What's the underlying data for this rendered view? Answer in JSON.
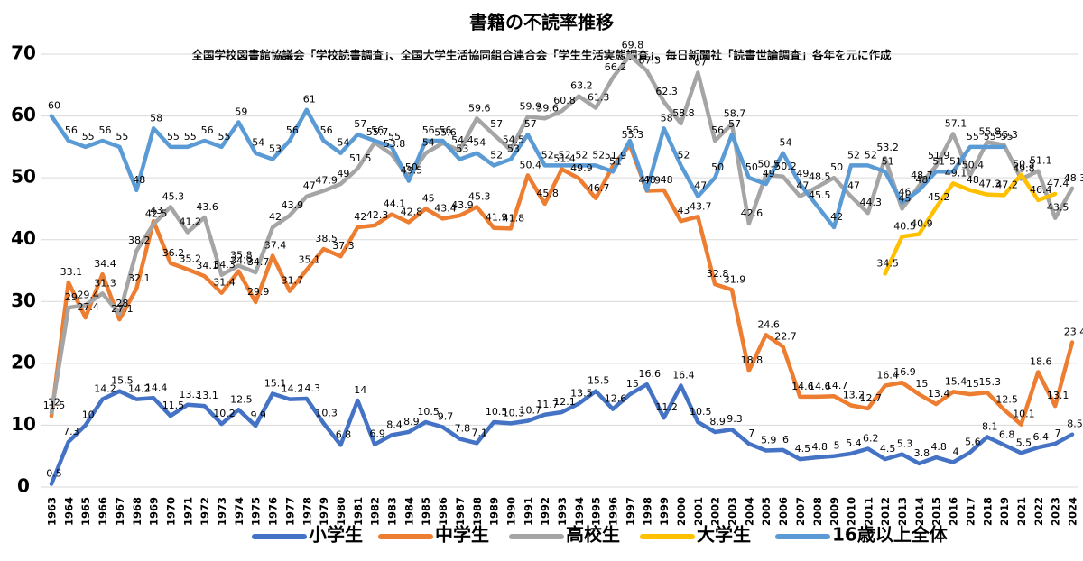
{
  "chart_data": {
    "type": "line",
    "title": "書籍の不読率推移",
    "subtitle": "全国学校図書館協議会「学校読書調査」、全国大学生活協同組合連合会「学生生活実態調査」、毎日新聞社「読書世論調査」各年を元に作成",
    "categories": [
      "1963",
      "1964",
      "1965",
      "1966",
      "1967",
      "1968",
      "1969",
      "1970",
      "1971",
      "1972",
      "1973",
      "1974",
      "1975",
      "1976",
      "1977",
      "1978",
      "1979",
      "1980",
      "1981",
      "1982",
      "1983",
      "1984",
      "1985",
      "1986",
      "1987",
      "1988",
      "1989",
      "1990",
      "1991",
      "1992",
      "1993",
      "1994",
      "1995",
      "1996",
      "1997",
      "1998",
      "1999",
      "2000",
      "2001",
      "2002",
      "2003",
      "2004",
      "2005",
      "2006",
      "2007",
      "2008",
      "2009",
      "2010",
      "2011",
      "2012",
      "2013",
      "2014",
      "2015",
      "2016",
      "2017",
      "2018",
      "2019",
      "2021",
      "2022",
      "2023",
      "2024"
    ],
    "ylim": [
      0,
      70
    ],
    "yticks": [
      0,
      10,
      20,
      30,
      40,
      50,
      60,
      70
    ],
    "grid": true,
    "legend": "bottom",
    "series": [
      {
        "name": "小学生",
        "color": "#4472c4",
        "values": [
          0.5,
          7.3,
          10,
          14.2,
          15.5,
          14.2,
          14.4,
          11.5,
          13.3,
          13.1,
          10.2,
          12.5,
          9.9,
          15.1,
          14.2,
          14.3,
          10.3,
          6.8,
          14,
          6.9,
          8.4,
          8.9,
          10.5,
          9.7,
          7.8,
          7.1,
          10.5,
          10.3,
          10.7,
          11.7,
          12.1,
          13.5,
          15.5,
          12.6,
          15,
          16.6,
          11.2,
          16.4,
          10.5,
          8.9,
          9.3,
          7,
          5.9,
          6,
          4.5,
          4.8,
          5,
          5.4,
          6.2,
          4.5,
          5.3,
          3.8,
          4.8,
          4,
          5.6,
          8.1,
          6.8,
          5.5,
          6.4,
          7,
          8.5
        ]
      },
      {
        "name": "中学生",
        "color": "#ed7d31",
        "values": [
          11.5,
          33.1,
          27.4,
          34.4,
          27.1,
          32.1,
          43,
          36.2,
          35.2,
          34.1,
          31.4,
          34.9,
          29.9,
          37.4,
          31.7,
          35.1,
          38.5,
          37.3,
          42,
          42.3,
          44.1,
          42.8,
          45,
          43.4,
          43.9,
          45.3,
          41.9,
          41.8,
          50.4,
          45.8,
          51.4,
          49.9,
          46.7,
          51.9,
          55.3,
          47.9,
          48,
          43,
          43.7,
          32.8,
          31.9,
          18.8,
          24.6,
          22.7,
          14.6,
          14.6,
          14.7,
          13.2,
          12.7,
          16.4,
          16.9,
          15,
          13.4,
          15.4,
          15,
          15.3,
          12.5,
          10.1,
          18.6,
          13.1,
          23.4
        ]
      },
      {
        "name": "高校生",
        "color": "#a5a5a5",
        "values": [
          12,
          29,
          29.4,
          31.3,
          28,
          38.2,
          42.5,
          45.3,
          41.2,
          43.6,
          34.3,
          35.8,
          34.7,
          42,
          43.9,
          47,
          47.9,
          49,
          51.5,
          55.7,
          53.8,
          50,
          54,
          55.6,
          54.4,
          59.6,
          57,
          54.5,
          59.9,
          59.6,
          60.8,
          63.2,
          61.3,
          66.2,
          69.8,
          67.3,
          62.3,
          58.8,
          67,
          56,
          58.7,
          42.6,
          50.5,
          50.2,
          47,
          48.5,
          50,
          47,
          44.3,
          53.2,
          45,
          48.7,
          51.9,
          57.1,
          50.4,
          55.8,
          55.3,
          49.8,
          51.1,
          43.5,
          48.3
        ]
      },
      {
        "name": "大学生",
        "color": "#ffc000",
        "values": [
          null,
          null,
          null,
          null,
          null,
          null,
          null,
          null,
          null,
          null,
          null,
          null,
          null,
          null,
          null,
          null,
          null,
          null,
          null,
          null,
          null,
          null,
          null,
          null,
          null,
          null,
          null,
          null,
          null,
          null,
          null,
          null,
          null,
          null,
          null,
          null,
          null,
          null,
          null,
          null,
          null,
          null,
          null,
          null,
          null,
          null,
          null,
          null,
          null,
          34.5,
          40.5,
          40.9,
          45.2,
          49.1,
          48,
          47.3,
          47.2,
          50.5,
          46.4,
          47.4,
          null
        ]
      },
      {
        "name": "16歳以上全体",
        "color": "#5b9bd5",
        "values": [
          60,
          56,
          55,
          56,
          55,
          48,
          58,
          55,
          55,
          56,
          55,
          59,
          54,
          53,
          56,
          61,
          56,
          54,
          57,
          56,
          55,
          49.5,
          56,
          56,
          53,
          54,
          52,
          53,
          57,
          52,
          52,
          52,
          52,
          51,
          56,
          48,
          58,
          52,
          47,
          50,
          57,
          50,
          49,
          54,
          49,
          45.5,
          42,
          52,
          52,
          51,
          46,
          48,
          51,
          51,
          55,
          55,
          55,
          null,
          null,
          null,
          null
        ]
      }
    ]
  }
}
